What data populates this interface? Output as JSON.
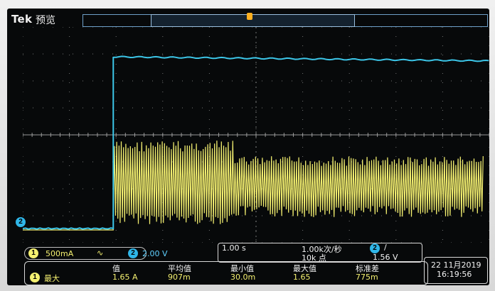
{
  "header": {
    "brand": "Tek",
    "mode": "预览"
  },
  "channel_marker": "2",
  "channels": {
    "ch1": {
      "badge": "1",
      "scale": "500mA",
      "coupling": "∿",
      "color": "#f4f070"
    },
    "ch2": {
      "badge": "2",
      "scale": "2.00 V",
      "color": "#2fb6e8"
    }
  },
  "timebase": {
    "horizontal": "1.00 s",
    "sample_rate": "1.00k次/秒",
    "record_length": "10k 点",
    "trigger_source": "2",
    "trigger_slope": "/",
    "trigger_level": "1.56 V"
  },
  "measurement": {
    "source_badge": "1",
    "label": "最大",
    "columns": [
      {
        "header": "值",
        "value": "1.65 A"
      },
      {
        "header": "平均值",
        "value": "907m"
      },
      {
        "header": "最小值",
        "value": "30.0m"
      },
      {
        "header": "最大值",
        "value": "1.65"
      },
      {
        "header": "标准差",
        "value": "775m"
      }
    ]
  },
  "clock": {
    "date": "22 11月2019",
    "time": "16:19:56"
  },
  "colors": {
    "trace_ch1": "#f4f070",
    "trace_ch2": "#3cc6e8",
    "grid": "#c8c8c8"
  }
}
